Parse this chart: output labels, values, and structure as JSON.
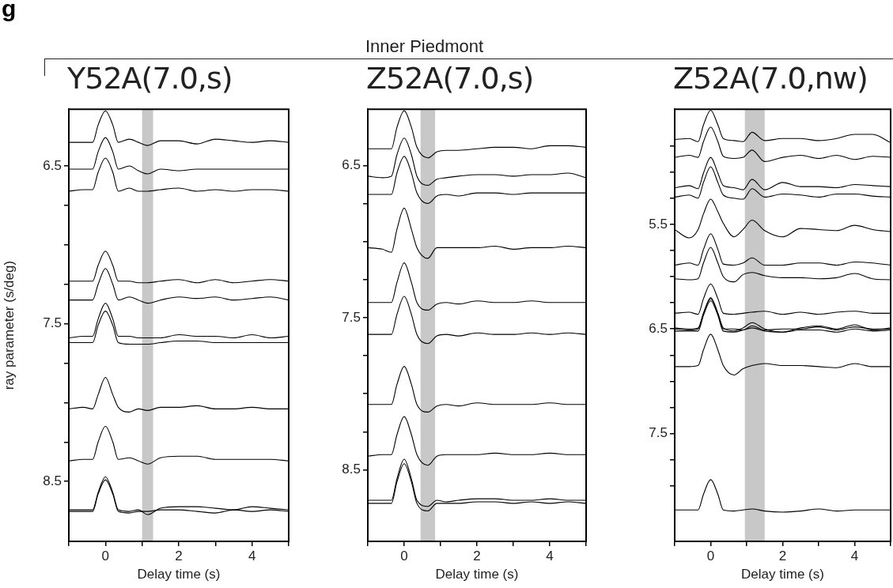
{
  "chart_data": [
    {
      "type": "line",
      "title": "Y52A(7.0,s)",
      "xlabel": "Delay time (s)",
      "ylabel": "ray parameter (s/deg)",
      "annotations": [
        "g",
        "Inner Piedmont"
      ],
      "marker": "none",
      "line_style": "solid",
      "x": [
        -1,
        -0.6,
        -0.35,
        -0.2,
        0,
        0.2,
        0.35,
        0.65,
        0.9,
        1.15,
        1.5,
        2,
        2.5,
        3,
        3.5,
        4,
        4.5,
        5
      ],
      "xlim": [
        -1,
        5
      ],
      "xticks": [
        {
          "value": -1,
          "label": null
        },
        0,
        {
          "value": 1,
          "label": null
        },
        2,
        {
          "value": 3,
          "label": null
        },
        4,
        {
          "value": 5,
          "label": null
        }
      ],
      "ylim": [
        8.88,
        6.14
      ],
      "yticks": [
        6.5,
        {
          "value": 6.75,
          "label": null
        },
        {
          "value": 7,
          "label": null
        },
        {
          "value": 7.25,
          "label": null
        },
        7.5,
        {
          "value": 7.75,
          "label": null
        },
        {
          "value": 8,
          "label": null
        },
        {
          "value": 8.25,
          "label": null
        },
        8.5
      ],
      "bands": [
        {
          "axis": "x",
          "from": 1.0,
          "to": 1.3,
          "color": "#c8c8c8"
        }
      ],
      "series": [
        {
          "color": "#000000",
          "values": [
            6.35,
            6.35,
            6.35,
            6.24,
            6.15,
            6.24,
            6.35,
            6.33,
            6.35,
            6.37,
            6.34,
            6.34,
            6.36,
            6.33,
            6.34,
            6.35,
            6.34,
            6.35
          ]
        },
        {
          "color": "#000000",
          "values": [
            6.52,
            6.52,
            6.52,
            6.41,
            6.32,
            6.41,
            6.52,
            6.5,
            6.53,
            6.55,
            6.52,
            6.53,
            6.52,
            6.52,
            6.52,
            6.52,
            6.52,
            6.52
          ]
        },
        {
          "color": "#000000",
          "values": [
            6.66,
            6.65,
            6.65,
            6.54,
            6.45,
            6.54,
            6.66,
            6.64,
            6.66,
            6.66,
            6.65,
            6.64,
            6.66,
            6.65,
            6.66,
            6.65,
            6.65,
            6.66
          ]
        },
        {
          "color": "#000000",
          "values": [
            7.23,
            7.23,
            7.23,
            7.13,
            7.04,
            7.13,
            7.23,
            7.23,
            7.24,
            7.24,
            7.23,
            7.22,
            7.24,
            7.22,
            7.24,
            7.23,
            7.22,
            7.23
          ]
        },
        {
          "color": "#000000",
          "values": [
            7.35,
            7.35,
            7.35,
            7.25,
            7.15,
            7.25,
            7.35,
            7.33,
            7.35,
            7.37,
            7.35,
            7.33,
            7.34,
            7.33,
            7.35,
            7.34,
            7.33,
            7.35
          ]
        },
        {
          "color": "#000000",
          "values": [
            7.59,
            7.58,
            7.58,
            7.47,
            7.37,
            7.47,
            7.58,
            7.58,
            7.59,
            7.59,
            7.59,
            7.57,
            7.58,
            7.58,
            7.59,
            7.57,
            7.59,
            7.58
          ]
        },
        {
          "color": "#000000",
          "values": [
            7.62,
            7.62,
            7.62,
            7.51,
            7.42,
            7.51,
            7.62,
            7.63,
            7.63,
            7.63,
            7.62,
            7.61,
            7.61,
            7.62,
            7.62,
            7.62,
            7.62,
            7.62
          ]
        },
        {
          "color": "#000000",
          "values": [
            8.04,
            8.03,
            8.04,
            7.95,
            7.84,
            7.95,
            8.03,
            8.06,
            8.04,
            8.05,
            8.03,
            8.03,
            8.02,
            8.04,
            8.04,
            8.03,
            8.04,
            8.04
          ]
        },
        {
          "color": "#000000",
          "values": [
            8.37,
            8.36,
            8.36,
            8.25,
            8.15,
            8.25,
            8.36,
            8.35,
            8.37,
            8.39,
            8.35,
            8.34,
            8.34,
            8.36,
            8.36,
            8.36,
            8.36,
            8.37
          ]
        },
        {
          "color": "#000000",
          "values": [
            8.68,
            8.68,
            8.68,
            8.57,
            8.47,
            8.57,
            8.68,
            8.69,
            8.68,
            8.71,
            8.67,
            8.66,
            8.66,
            8.67,
            8.68,
            8.66,
            8.67,
            8.68
          ]
        },
        {
          "color": "#000000",
          "values": [
            8.69,
            8.69,
            8.69,
            8.58,
            8.49,
            8.58,
            8.69,
            8.7,
            8.69,
            8.69,
            8.68,
            8.68,
            8.69,
            8.7,
            8.68,
            8.69,
            8.68,
            8.69
          ]
        }
      ]
    },
    {
      "type": "line",
      "title": "Z52A(7.0,s)",
      "xlabel": "Delay time (s)",
      "marker": "none",
      "line_style": "solid",
      "x": [
        -1,
        -0.6,
        -0.35,
        -0.2,
        0,
        0.2,
        0.35,
        0.65,
        0.9,
        1.15,
        1.5,
        2,
        2.5,
        3,
        3.5,
        4,
        4.5,
        5
      ],
      "xlim": [
        -1,
        5
      ],
      "xticks": [
        {
          "value": -1,
          "label": null
        },
        0,
        {
          "value": 1,
          "label": null
        },
        2,
        {
          "value": 3,
          "label": null
        },
        4,
        {
          "value": 5,
          "label": null
        }
      ],
      "ylim": [
        8.97,
        6.13
      ],
      "yticks": [
        6.5,
        {
          "value": 6.75,
          "label": null
        },
        {
          "value": 7,
          "label": null
        },
        {
          "value": 7.25,
          "label": null
        },
        7.5,
        {
          "value": 7.75,
          "label": null
        },
        {
          "value": 8,
          "label": null
        },
        {
          "value": 8.25,
          "label": null
        },
        8.5
      ],
      "bands": [
        {
          "axis": "x",
          "from": 0.45,
          "to": 0.85,
          "color": "#c8c8c8"
        }
      ],
      "series": [
        {
          "color": "#000000",
          "values": [
            6.39,
            6.39,
            6.39,
            6.25,
            6.14,
            6.25,
            6.38,
            6.45,
            6.41,
            6.4,
            6.4,
            6.39,
            6.38,
            6.38,
            6.39,
            6.37,
            6.37,
            6.38
          ]
        },
        {
          "color": "#000000",
          "values": [
            6.57,
            6.58,
            6.57,
            6.43,
            6.32,
            6.43,
            6.57,
            6.63,
            6.59,
            6.58,
            6.57,
            6.56,
            6.56,
            6.57,
            6.56,
            6.56,
            6.55,
            6.58
          ]
        },
        {
          "color": "#000000",
          "values": [
            6.69,
            6.69,
            6.69,
            6.55,
            6.44,
            6.55,
            6.68,
            6.75,
            6.7,
            6.69,
            6.7,
            6.68,
            6.68,
            6.69,
            6.68,
            6.68,
            6.68,
            6.68
          ]
        },
        {
          "color": "#000000",
          "values": [
            7.04,
            7.05,
            7.07,
            6.92,
            6.78,
            6.92,
            7.04,
            7.11,
            7.04,
            7.04,
            7.04,
            7.04,
            7.03,
            7.05,
            7.04,
            7.04,
            7.03,
            7.04
          ]
        },
        {
          "color": "#000000",
          "values": [
            7.4,
            7.4,
            7.4,
            7.27,
            7.14,
            7.27,
            7.4,
            7.45,
            7.41,
            7.4,
            7.41,
            7.39,
            7.4,
            7.4,
            7.39,
            7.4,
            7.4,
            7.4
          ]
        },
        {
          "color": "#000000",
          "values": [
            7.61,
            7.61,
            7.61,
            7.48,
            7.36,
            7.48,
            7.61,
            7.67,
            7.62,
            7.61,
            7.62,
            7.6,
            7.61,
            7.61,
            7.6,
            7.61,
            7.6,
            7.61
          ]
        },
        {
          "color": "#000000",
          "values": [
            8.07,
            8.07,
            8.07,
            7.94,
            7.82,
            7.94,
            8.07,
            8.12,
            8.08,
            8.07,
            8.08,
            8.06,
            8.07,
            8.07,
            8.07,
            8.06,
            8.07,
            8.07
          ]
        },
        {
          "color": "#000000",
          "values": [
            8.41,
            8.4,
            8.4,
            8.27,
            8.15,
            8.27,
            8.4,
            8.47,
            8.41,
            8.4,
            8.4,
            8.4,
            8.39,
            8.4,
            8.4,
            8.39,
            8.4,
            8.4
          ]
        },
        {
          "color": "#000000",
          "values": [
            8.7,
            8.7,
            8.7,
            8.56,
            8.43,
            8.56,
            8.7,
            8.74,
            8.7,
            8.71,
            8.7,
            8.69,
            8.69,
            8.7,
            8.7,
            8.69,
            8.7,
            8.7
          ]
        },
        {
          "color": "#000000",
          "values": [
            8.72,
            8.72,
            8.72,
            8.58,
            8.46,
            8.58,
            8.72,
            8.77,
            8.72,
            8.72,
            8.72,
            8.71,
            8.71,
            8.72,
            8.71,
            8.72,
            8.71,
            8.72
          ]
        }
      ]
    },
    {
      "type": "line",
      "title": "Z52A(7.0,nw)",
      "xlabel": "Delay time (s)",
      "marker": "none",
      "line_style": "solid",
      "x": [
        -1,
        -0.6,
        -0.35,
        -0.2,
        0,
        0.2,
        0.35,
        0.65,
        0.9,
        1.15,
        1.5,
        2,
        2.5,
        3,
        3.5,
        4,
        4.5,
        5
      ],
      "xlim": [
        -1,
        5
      ],
      "xticks": [
        {
          "value": -1,
          "label": null
        },
        0,
        {
          "value": 1,
          "label": null
        },
        2,
        {
          "value": 3,
          "label": null
        },
        4,
        {
          "value": 5,
          "label": null
        }
      ],
      "ylim": [
        8.53,
        4.4
      ],
      "yticks": [
        {
          "value": 4.75,
          "label": null
        },
        {
          "value": 5,
          "label": null
        },
        {
          "value": 5.25,
          "label": null
        },
        5.5,
        {
          "value": 5.75,
          "label": null
        },
        {
          "value": 6,
          "label": null
        },
        {
          "value": 6.25,
          "label": null
        },
        6.5,
        {
          "value": 6.75,
          "label": null
        },
        {
          "value": 7,
          "label": null
        },
        {
          "value": 7.25,
          "label": null
        },
        7.5,
        {
          "value": 7.75,
          "label": null
        },
        {
          "value": 8,
          "label": null
        }
      ],
      "bands": [
        {
          "axis": "x",
          "from": 0.95,
          "to": 1.5,
          "color": "#c8c8c8"
        }
      ],
      "series": [
        {
          "color": "#000000",
          "values": [
            4.69,
            4.68,
            4.71,
            4.55,
            4.41,
            4.55,
            4.68,
            4.7,
            4.71,
            4.62,
            4.7,
            4.68,
            4.68,
            4.7,
            4.68,
            4.64,
            4.64,
            4.72
          ]
        },
        {
          "color": "#000000",
          "values": [
            4.86,
            4.84,
            4.86,
            4.71,
            4.57,
            4.71,
            4.85,
            4.87,
            4.86,
            4.79,
            4.9,
            4.86,
            4.84,
            4.87,
            4.84,
            4.88,
            4.85,
            4.86
          ]
        },
        {
          "color": "#000000",
          "values": [
            5.15,
            5.13,
            5.16,
            5.01,
            4.86,
            5.01,
            5.13,
            5.15,
            5.17,
            5.07,
            5.17,
            5.1,
            5.14,
            5.14,
            5.15,
            5.12,
            5.13,
            5.14
          ]
        },
        {
          "color": "#000000",
          "values": [
            5.24,
            5.22,
            5.25,
            5.1,
            4.95,
            5.1,
            5.22,
            5.25,
            5.26,
            5.16,
            5.24,
            5.21,
            5.22,
            5.24,
            5.21,
            5.21,
            5.23,
            5.24
          ]
        },
        {
          "color": "#000000",
          "values": [
            5.55,
            5.63,
            5.55,
            5.4,
            5.26,
            5.38,
            5.49,
            5.62,
            5.55,
            5.46,
            5.56,
            5.62,
            5.54,
            5.55,
            5.56,
            5.51,
            5.55,
            5.57
          ]
        },
        {
          "color": "#000000",
          "values": [
            5.89,
            5.87,
            5.89,
            5.74,
            5.59,
            5.74,
            5.88,
            5.89,
            5.87,
            5.82,
            5.89,
            5.89,
            5.87,
            5.87,
            5.89,
            5.86,
            5.87,
            5.89
          ]
        },
        {
          "color": "#000000",
          "values": [
            6.02,
            6.03,
            6.02,
            5.87,
            5.72,
            5.87,
            6,
            6.05,
            5.98,
            5.96,
            5.99,
            6.01,
            6.01,
            6.02,
            6.01,
            5.97,
            6.02,
            6.03
          ]
        },
        {
          "color": "#000000",
          "values": [
            6.35,
            6.34,
            6.36,
            6.21,
            6.07,
            6.21,
            6.35,
            6.36,
            6.35,
            6.34,
            6.33,
            6.36,
            6.34,
            6.36,
            6.34,
            6.33,
            6.35,
            6.35
          ]
        },
        {
          "color": "#000000",
          "values": [
            6.49,
            6.5,
            6.49,
            6.35,
            6.2,
            6.35,
            6.49,
            6.52,
            6.49,
            6.44,
            6.5,
            6.53,
            6.49,
            6.47,
            6.5,
            6.46,
            6.51,
            6.49
          ]
        },
        {
          "color": "#000000",
          "values": [
            6.5,
            6.51,
            6.5,
            6.35,
            6.21,
            6.35,
            6.5,
            6.5,
            6.51,
            6.47,
            6.51,
            6.5,
            6.5,
            6.48,
            6.51,
            6.48,
            6.5,
            6.5
          ]
        },
        {
          "color": "#000000",
          "values": [
            6.52,
            6.52,
            6.52,
            6.37,
            6.23,
            6.37,
            6.52,
            6.53,
            6.51,
            6.49,
            6.52,
            6.53,
            6.51,
            6.51,
            6.53,
            6.5,
            6.52,
            6.51
          ]
        },
        {
          "color": "#000000",
          "values": [
            6.86,
            6.86,
            6.85,
            6.7,
            6.55,
            6.7,
            6.85,
            6.94,
            6.88,
            6.85,
            6.83,
            6.85,
            6.85,
            6.86,
            6.87,
            6.83,
            6.86,
            6.86
          ]
        },
        {
          "color": "#000000",
          "values": [
            8.23,
            8.23,
            8.23,
            8.08,
            7.94,
            8.08,
            8.23,
            8.24,
            8.23,
            8.22,
            8.24,
            8.25,
            8.24,
            8.22,
            8.24,
            8.23,
            8.23,
            8.23
          ]
        }
      ]
    }
  ]
}
